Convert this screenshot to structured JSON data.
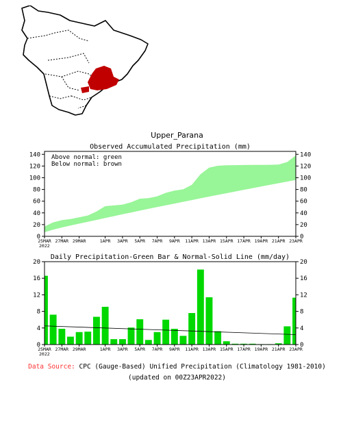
{
  "region_title": "Upper_Parana",
  "source": {
    "label": "Data Source:",
    "text": "CPC (Gauge-Based) Unified Precipitation (Climatology 1981-2010)",
    "updated": "(updated on 00Z23APR2022)"
  },
  "colors": {
    "above_normal": "#98f598",
    "bar": "#00d800",
    "region": "#c00000",
    "source_label": "#ff3030"
  },
  "chart_data": [
    {
      "type": "area",
      "title": "Observed Accumulated Precipitation (mm)",
      "legend_lines": [
        "Above normal: green",
        "Below normal: brown"
      ],
      "ylim": [
        0,
        145
      ],
      "yticks": [
        0,
        20,
        40,
        60,
        80,
        100,
        120,
        140
      ],
      "xlim": [
        0,
        29
      ],
      "x_tick_positions": [
        0,
        2,
        4,
        7,
        9,
        11,
        13,
        15,
        17,
        19,
        21,
        23,
        25,
        27,
        29
      ],
      "x_tick_labels": [
        "25MAR",
        "27MAR",
        "29MAR",
        "1APR",
        "3APR",
        "5APR",
        "7APR",
        "9APR",
        "11APR",
        "13APR",
        "15APR",
        "17APR",
        "19APR",
        "21APR",
        "23APR"
      ],
      "x_year_label": "2022",
      "series": [
        {
          "values": [
            16.6,
            23.8,
            27.6,
            29.5,
            32.5,
            35.6,
            42.3,
            51.4,
            52.7,
            54.0,
            58.1,
            64.2,
            65.3,
            68.3,
            74.3,
            78.1,
            80.2,
            87.8,
            105.9,
            117.3,
            120.5,
            121.3,
            121.5,
            121.7,
            121.9,
            122.0,
            122.1,
            122.4,
            126.8,
            138.1
          ]
        },
        {
          "values": [
            7.0,
            11.3,
            15.1,
            18.5,
            21.6,
            24.8,
            28.0,
            31.2,
            34.4,
            37.6,
            40.7,
            43.8,
            46.9,
            49.9,
            52.9,
            55.9,
            58.9,
            61.9,
            64.9,
            67.8,
            70.7,
            73.6,
            76.5,
            79.4,
            82.2,
            85.0,
            87.8,
            90.6,
            93.4,
            96.1
          ]
        }
      ]
    },
    {
      "type": "bar",
      "title": "Daily Precipitation-Green Bar & Normal-Solid Line (mm/day)",
      "ylim": [
        0,
        20
      ],
      "yticks": [
        0,
        4,
        8,
        12,
        16,
        20
      ],
      "xlim": [
        0,
        29
      ],
      "x_tick_positions": [
        0,
        2,
        4,
        7,
        9,
        11,
        13,
        15,
        17,
        19,
        21,
        23,
        25,
        27,
        29
      ],
      "x_tick_labels": [
        "25MAR",
        "27MAR",
        "29MAR",
        "1APR",
        "3APR",
        "5APR",
        "7APR",
        "9APR",
        "11APR",
        "13APR",
        "15APR",
        "17APR",
        "19APR",
        "21APR",
        "23APR"
      ],
      "x_year_label": "2022",
      "values": [
        16.6,
        7.2,
        3.8,
        1.9,
        3.0,
        3.1,
        6.7,
        9.1,
        1.3,
        1.3,
        4.1,
        6.1,
        1.1,
        3.0,
        6.0,
        3.8,
        2.1,
        7.6,
        18.1,
        11.4,
        3.2,
        0.8,
        0.2,
        0.2,
        0.2,
        0.1,
        0.1,
        0.3,
        4.4,
        11.3
      ],
      "normal_line": [
        4.5,
        2.4
      ]
    }
  ]
}
